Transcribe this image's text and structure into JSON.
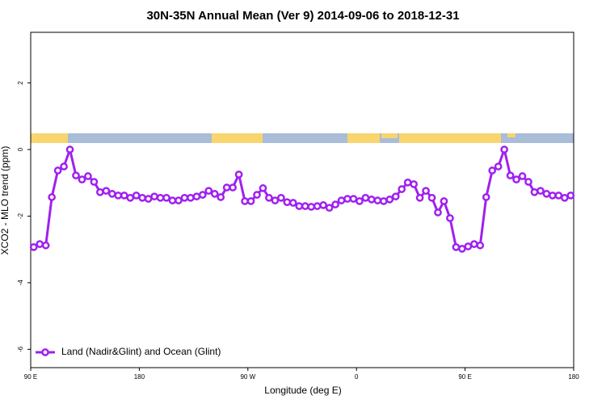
{
  "chart_data": {
    "type": "line",
    "title": "30N-35N Annual Mean (Ver 9)   2014-09-06 to 2018-12-31",
    "x_label": "Longitude (deg E)",
    "y_label": "XCO2 - MLO trend (ppm)",
    "xlim": [
      90,
      540
    ],
    "xticks": [
      {
        "value": 90,
        "label": "90 E"
      },
      180,
      {
        "value": 270,
        "label": "90 W"
      },
      {
        "value": 360,
        "label": "0"
      },
      {
        "value": 450,
        "label": "90 E"
      },
      {
        "value": 540,
        "label": "180"
      }
    ],
    "ylim": [
      -6.55,
      3.52
    ],
    "yticks": [
      2,
      0,
      -2,
      -4,
      -6
    ],
    "legend": "bottom-left",
    "series": [
      {
        "name": "Land (Nadir&Glint) and Ocean (Glint)",
        "color": "#a020f0",
        "x": [
          92.5,
          97.5,
          102.5,
          107.5,
          112.5,
          117.5,
          122.5,
          127.5,
          132.5,
          137.5,
          142.5,
          147.5,
          152.5,
          157.5,
          162.5,
          167.5,
          172.5,
          177.5,
          182.5,
          187.5,
          192.5,
          197.5,
          202.5,
          207.5,
          212.5,
          217.5,
          222.5,
          227.5,
          232.5,
          237.5,
          242.5,
          247.5,
          252.5,
          257.5,
          262.5,
          267.5,
          272.5,
          277.5,
          282.5,
          287.5,
          292.5,
          297.5,
          302.5,
          307.5,
          312.5,
          317.5,
          322.5,
          327.5,
          332.5,
          337.5,
          342.5,
          347.5,
          352.5,
          357.5,
          362.5,
          367.5,
          372.5,
          377.5,
          382.5,
          387.5,
          392.5,
          397.5,
          402.5,
          407.5,
          412.5,
          417.5,
          422.5,
          427.5,
          432.5,
          437.5,
          442.5,
          447.5,
          452.5,
          457.5,
          462.5,
          467.5,
          472.5,
          477.5,
          482.5,
          487.5,
          492.5,
          497.5,
          502.5,
          507.5,
          512.5,
          517.5,
          522.5,
          527.5,
          532.5,
          537.5
        ],
        "values": [
          -2.93,
          -2.84,
          -2.88,
          -1.43,
          -0.63,
          -0.51,
          0.0,
          -0.78,
          -0.9,
          -0.8,
          -0.97,
          -1.28,
          -1.24,
          -1.33,
          -1.38,
          -1.38,
          -1.45,
          -1.38,
          -1.45,
          -1.48,
          -1.41,
          -1.45,
          -1.45,
          -1.53,
          -1.53,
          -1.45,
          -1.45,
          -1.41,
          -1.36,
          -1.24,
          -1.33,
          -1.43,
          -1.14,
          -1.14,
          -0.75,
          -1.55,
          -1.55,
          -1.36,
          -1.16,
          -1.45,
          -1.53,
          -1.45,
          -1.58,
          -1.6,
          -1.7,
          -1.7,
          -1.72,
          -1.7,
          -1.67,
          -1.75,
          -1.65,
          -1.53,
          -1.48,
          -1.48,
          -1.55,
          -1.45,
          -1.5,
          -1.53,
          -1.55,
          -1.5,
          -1.41,
          -1.19,
          -0.99,
          -1.04,
          -1.45,
          -1.24,
          -1.45,
          -1.89,
          -1.55,
          -2.06,
          -2.93,
          -2.98,
          -2.91,
          -2.84,
          -2.88,
          -1.43,
          -0.63,
          -0.51,
          0.0,
          -0.78,
          -0.9,
          -0.8,
          -0.97,
          -1.28,
          -1.24,
          -1.33,
          -1.38,
          -1.38,
          -1.45,
          -1.38
        ]
      }
    ]
  }
}
